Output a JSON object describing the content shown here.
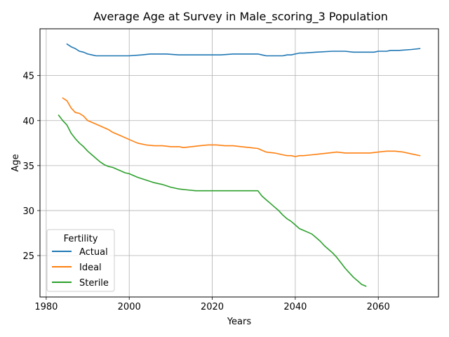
{
  "chart_data": {
    "type": "line",
    "title": "Average Age at Survey in Male_scoring_3 Population",
    "xlabel": "Years",
    "ylabel": "Age",
    "xlim": [
      1978.5,
      2074.5
    ],
    "ylim": [
      20.4,
      50.2
    ],
    "xticks": [
      1980,
      2000,
      2020,
      2040,
      2060
    ],
    "yticks": [
      25,
      30,
      35,
      40,
      45
    ],
    "grid": true,
    "legend": {
      "title": "Fertility",
      "placement": "lower-left"
    },
    "series": [
      {
        "name": "Actual",
        "color": "#1f77b4",
        "x": [
          1985,
          1986,
          1987,
          1988,
          1989,
          1990,
          1991,
          1992,
          1995,
          2000,
          2003,
          2005,
          2009,
          2012,
          2015,
          2017,
          2020,
          2022,
          2025,
          2027,
          2029,
          2031,
          2032,
          2033,
          2034,
          2036,
          2037,
          2038,
          2039,
          2040,
          2041,
          2042,
          2045,
          2049,
          2052,
          2054,
          2056,
          2057,
          2058,
          2059,
          2060,
          2061,
          2062,
          2063,
          2065,
          2068,
          2070
        ],
        "y": [
          48.5,
          48.2,
          48.0,
          47.7,
          47.6,
          47.4,
          47.3,
          47.2,
          47.2,
          47.2,
          47.3,
          47.4,
          47.4,
          47.3,
          47.3,
          47.3,
          47.3,
          47.3,
          47.4,
          47.4,
          47.4,
          47.4,
          47.3,
          47.2,
          47.2,
          47.2,
          47.2,
          47.3,
          47.3,
          47.4,
          47.5,
          47.5,
          47.6,
          47.7,
          47.7,
          47.6,
          47.6,
          47.6,
          47.6,
          47.6,
          47.7,
          47.7,
          47.7,
          47.8,
          47.8,
          47.9,
          48.0
        ]
      },
      {
        "name": "Ideal",
        "color": "#ff7f0e",
        "x": [
          1984,
          1985,
          1986,
          1987,
          1988,
          1989,
          1990,
          1991,
          1993,
          1995,
          1996,
          1998,
          2000,
          2002,
          2004,
          2006,
          2008,
          2010,
          2012,
          2013,
          2015,
          2017,
          2019,
          2021,
          2023,
          2025,
          2027,
          2029,
          2031,
          2032,
          2033,
          2035,
          2037,
          2038,
          2039,
          2040,
          2041,
          2042,
          2044,
          2046,
          2048,
          2050,
          2052,
          2054,
          2056,
          2058,
          2060,
          2062,
          2064,
          2066,
          2068,
          2070
        ],
        "y": [
          42.5,
          42.2,
          41.4,
          40.9,
          40.8,
          40.5,
          40.0,
          39.8,
          39.4,
          39.0,
          38.7,
          38.3,
          37.9,
          37.5,
          37.3,
          37.2,
          37.2,
          37.1,
          37.1,
          37.0,
          37.1,
          37.2,
          37.3,
          37.3,
          37.2,
          37.2,
          37.1,
          37.0,
          36.9,
          36.7,
          36.5,
          36.4,
          36.2,
          36.1,
          36.1,
          36.0,
          36.1,
          36.1,
          36.2,
          36.3,
          36.4,
          36.5,
          36.4,
          36.4,
          36.4,
          36.4,
          36.5,
          36.6,
          36.6,
          36.5,
          36.3,
          36.1
        ]
      },
      {
        "name": "Sterile",
        "color": "#2ca02c",
        "x": [
          1983,
          1984,
          1985,
          1986,
          1987,
          1988,
          1989,
          1990,
          1991,
          1992,
          1993,
          1994,
          1995,
          1996,
          1997,
          1998,
          1999,
          2000,
          2002,
          2004,
          2006,
          2008,
          2010,
          2012,
          2014,
          2016,
          2020,
          2025,
          2028,
          2031,
          2032,
          2033,
          2034,
          2035,
          2036,
          2037,
          2038,
          2039,
          2040,
          2041,
          2042,
          2043,
          2044,
          2045,
          2046,
          2047,
          2048,
          2049,
          2050,
          2051,
          2052,
          2053,
          2054,
          2055,
          2056,
          2057
        ],
        "y": [
          40.6,
          40.0,
          39.5,
          38.6,
          38.0,
          37.5,
          37.1,
          36.6,
          36.2,
          35.8,
          35.4,
          35.1,
          34.9,
          34.8,
          34.6,
          34.4,
          34.2,
          34.1,
          33.7,
          33.4,
          33.1,
          32.9,
          32.6,
          32.4,
          32.3,
          32.2,
          32.2,
          32.2,
          32.2,
          32.2,
          31.6,
          31.2,
          30.8,
          30.4,
          30.0,
          29.5,
          29.1,
          28.8,
          28.4,
          28.0,
          27.8,
          27.6,
          27.4,
          27.0,
          26.6,
          26.1,
          25.7,
          25.3,
          24.8,
          24.2,
          23.6,
          23.1,
          22.6,
          22.2,
          21.8,
          21.6
        ]
      }
    ]
  }
}
